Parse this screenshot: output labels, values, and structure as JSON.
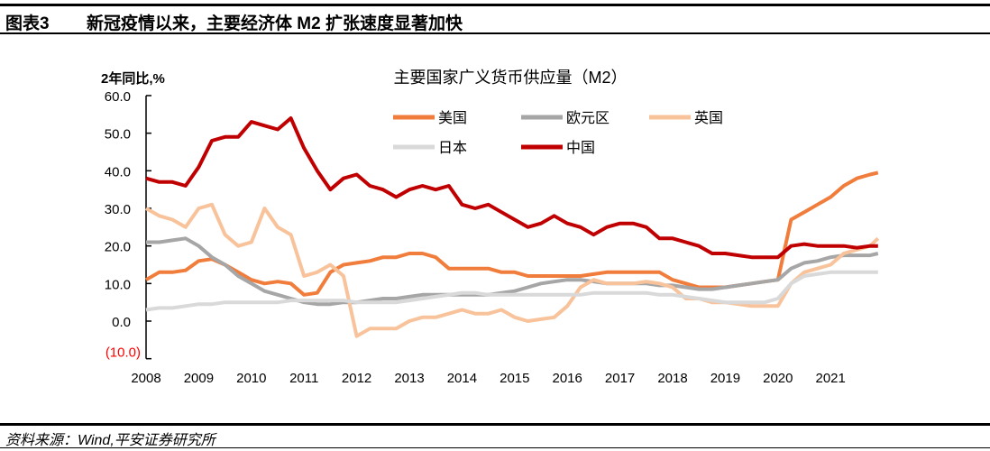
{
  "header": {
    "figure_number": "图表3",
    "title": "新冠疫情以来，主要经济体 M2 扩张速度显著加快"
  },
  "footer": {
    "source": "资料来源：Wind,平安证券研究所"
  },
  "chart_data": {
    "type": "line",
    "title": "主要国家广义货币供应量（M2）",
    "ylabel": "2年同比,%",
    "xlabel": "",
    "ylim": [
      -10,
      60
    ],
    "xlim": [
      2008,
      2022
    ],
    "yticks": [
      60,
      50,
      40,
      30,
      20,
      10,
      0,
      -10
    ],
    "ytick_labels": [
      "60.0",
      "50.0",
      "40.0",
      "30.0",
      "20.0",
      "10.0",
      "0.0",
      "(10.0)"
    ],
    "negative_label_color": "#ff0000",
    "xticks": [
      "2008",
      "2009",
      "2010",
      "2011",
      "2012",
      "2013",
      "2014",
      "2015",
      "2016",
      "2017",
      "2018",
      "2019",
      "2020",
      "2021"
    ],
    "grid": false,
    "legend": "top",
    "x": [
      2008,
      2008.25,
      2008.5,
      2008.75,
      2009,
      2009.25,
      2009.5,
      2009.75,
      2010,
      2010.25,
      2010.5,
      2010.75,
      2011,
      2011.25,
      2011.5,
      2011.75,
      2012,
      2012.25,
      2012.5,
      2012.75,
      2013,
      2013.25,
      2013.5,
      2013.75,
      2014,
      2014.25,
      2014.5,
      2014.75,
      2015,
      2015.25,
      2015.5,
      2015.75,
      2016,
      2016.25,
      2016.5,
      2016.75,
      2017,
      2017.25,
      2017.5,
      2017.75,
      2018,
      2018.25,
      2018.5,
      2018.75,
      2019,
      2019.25,
      2019.5,
      2019.75,
      2020,
      2020.25,
      2020.5,
      2020.75,
      2021,
      2021.25,
      2021.5,
      2021.75,
      2021.9
    ],
    "series": [
      {
        "name": "美国",
        "color": "#f07d3c",
        "values": [
          11,
          13,
          13,
          13.5,
          16,
          16.5,
          15,
          13,
          11,
          10,
          10.5,
          10,
          7,
          7.5,
          13,
          15,
          15.5,
          16,
          17,
          17,
          18,
          18,
          17,
          14,
          14,
          14,
          14,
          13,
          13,
          12,
          12,
          12,
          12,
          12,
          12.5,
          13,
          13,
          13,
          13,
          13,
          11,
          10,
          9,
          9,
          9,
          9.5,
          10,
          10.5,
          11,
          27,
          29,
          31,
          33,
          36,
          38,
          39,
          39.5
        ]
      },
      {
        "name": "欧元区",
        "color": "#a6a6a6",
        "values": [
          21,
          21,
          21.5,
          22,
          20,
          17,
          15,
          12,
          10,
          8,
          7,
          6,
          5,
          4.5,
          4.5,
          5,
          5,
          5.5,
          6,
          6,
          6.5,
          7,
          7,
          7,
          7,
          7,
          7,
          7.5,
          8,
          9,
          10,
          10.5,
          11,
          11,
          10.5,
          10,
          10,
          10,
          10,
          9.5,
          9.5,
          9,
          8.5,
          8.5,
          9,
          9.5,
          10,
          10.5,
          11,
          14,
          15.5,
          16,
          17,
          17.5,
          17.5,
          17.5,
          18
        ]
      },
      {
        "name": "英国",
        "color": "#f8c39b",
        "values": [
          30,
          28,
          27,
          25,
          30,
          31,
          23,
          20,
          21,
          30,
          25,
          23,
          12,
          13,
          15,
          12,
          -4,
          -2,
          -2,
          -2,
          0,
          1,
          1,
          2,
          3,
          2,
          2,
          3,
          1,
          0,
          0.5,
          1,
          4,
          9,
          11,
          10,
          10,
          10,
          10.5,
          10,
          9,
          6,
          6,
          5,
          5,
          4.5,
          4,
          4,
          4,
          10,
          13,
          14,
          15,
          18,
          19,
          20,
          22
        ]
      },
      {
        "name": "日本",
        "color": "#d9d9d9",
        "values": [
          3,
          3.5,
          3.5,
          4,
          4.5,
          4.5,
          5,
          5,
          5,
          5,
          5,
          5.5,
          5.5,
          5.5,
          5.5,
          5.5,
          5,
          5,
          5,
          5,
          5.5,
          6,
          6.5,
          7,
          7.5,
          7.5,
          7,
          7,
          7,
          7,
          7,
          7,
          7,
          7,
          7.5,
          7.5,
          7.5,
          7.5,
          7.5,
          7,
          7,
          6.5,
          6,
          5.5,
          5,
          5,
          5,
          5,
          6,
          10,
          12,
          12.5,
          13,
          13,
          13,
          13,
          13
        ]
      },
      {
        "name": "中国",
        "color": "#c00000",
        "values": [
          38,
          37,
          37,
          36,
          41,
          48,
          49,
          49,
          53,
          52,
          51,
          54,
          46,
          40,
          35,
          38,
          39,
          36,
          35,
          33,
          35,
          36,
          35,
          36,
          31,
          30,
          31,
          29,
          27,
          25,
          26,
          28,
          26,
          25,
          23,
          25,
          26,
          26,
          25,
          22,
          22,
          21,
          20,
          18,
          18,
          17.5,
          17,
          17,
          17,
          20,
          20.5,
          20,
          20,
          20,
          19.5,
          20,
          20
        ]
      }
    ]
  }
}
